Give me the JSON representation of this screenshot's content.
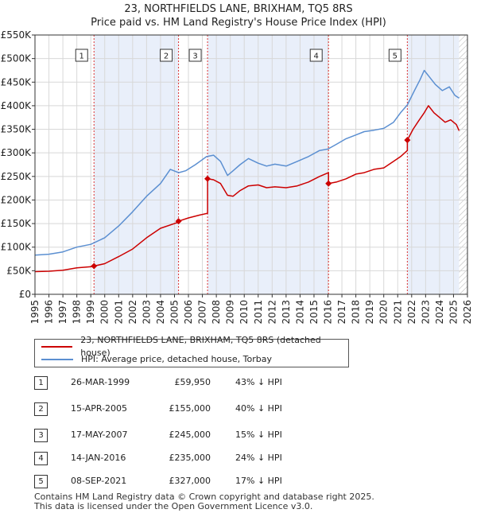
{
  "title": "23, NORTHFIELDS LANE, BRIXHAM, TQ5 8RS",
  "subtitle": "Price paid vs. HM Land Registry's House Price Index (HPI)",
  "colors": {
    "property": "#cc0000",
    "hpi": "#5b8fd1",
    "shade": "#e9effa",
    "vline": "#dd3333"
  },
  "chart_data": {
    "type": "line",
    "title": "23, NORTHFIELDS LANE, BRIXHAM, TQ5 8RS — Price paid vs. HM Land Registry's House Price Index (HPI)",
    "xlim": [
      1995,
      2026
    ],
    "ylim": [
      0,
      550000
    ],
    "y_ticks": [
      0,
      50000,
      100000,
      150000,
      200000,
      250000,
      300000,
      350000,
      400000,
      450000,
      500000,
      550000
    ],
    "y_tick_labels": [
      "£0",
      "£50K",
      "£100K",
      "£150K",
      "£200K",
      "£250K",
      "£300K",
      "£350K",
      "£400K",
      "£450K",
      "£500K",
      "£550K"
    ],
    "x_ticks": [
      1995,
      1996,
      1997,
      1998,
      1999,
      2000,
      2001,
      2002,
      2003,
      2004,
      2005,
      2006,
      2007,
      2008,
      2009,
      2010,
      2011,
      2012,
      2013,
      2014,
      2015,
      2016,
      2017,
      2018,
      2019,
      2020,
      2021,
      2022,
      2023,
      2024,
      2025,
      2026
    ],
    "x_tick_labels": [
      "1995",
      "1996",
      "1997",
      "1998",
      "1999",
      "2000",
      "2001",
      "2002",
      "2003",
      "2004",
      "2005",
      "2006",
      "2007",
      "2008",
      "2009",
      "2010",
      "2011",
      "2012",
      "2013",
      "2014",
      "2015",
      "2016",
      "2017",
      "2018",
      "2019",
      "2020",
      "2021",
      "2022",
      "2023",
      "2024",
      "2025",
      "2026"
    ],
    "grid": true,
    "series": [
      {
        "name": "23, NORTHFIELDS LANE, BRIXHAM, TQ5 8RS (detached house)",
        "color": "#cc0000",
        "x": [
          1995.0,
          1996.0,
          1997.0,
          1998.0,
          1999.23,
          1999.23,
          2000.0,
          2001.0,
          2002.0,
          2003.0,
          2004.0,
          2005.29,
          2005.29,
          2006.0,
          2006.8,
          2007.37,
          2007.37,
          2007.8,
          2008.3,
          2008.8,
          2009.2,
          2009.7,
          2010.3,
          2011.0,
          2011.6,
          2012.2,
          2013.0,
          2013.8,
          2014.6,
          2015.4,
          2016.04,
          2016.04,
          2016.6,
          2017.3,
          2018.0,
          2018.6,
          2019.3,
          2020.0,
          2020.7,
          2021.2,
          2021.69,
          2021.69,
          2022.1,
          2022.5,
          2022.9,
          2023.2,
          2023.6,
          2024.0,
          2024.4,
          2024.8,
          2025.2,
          2025.4
        ],
        "y": [
          48000,
          49000,
          51000,
          56000,
          59000,
          59950,
          65000,
          80000,
          96000,
          120000,
          140000,
          153000,
          155000,
          162000,
          168000,
          172000,
          245000,
          243000,
          235000,
          210000,
          208000,
          220000,
          230000,
          232000,
          226000,
          228000,
          226000,
          230000,
          238000,
          250000,
          258000,
          235000,
          238000,
          245000,
          255000,
          258000,
          265000,
          268000,
          282000,
          292000,
          305000,
          327000,
          350000,
          368000,
          385000,
          400000,
          385000,
          375000,
          365000,
          370000,
          360000,
          347000
        ]
      },
      {
        "name": "HPI: Average price, detached house, Torbay",
        "color": "#5b8fd1",
        "x": [
          1995.0,
          1996.0,
          1997.0,
          1998.0,
          1999.0,
          2000.0,
          2001.0,
          2002.0,
          2003.0,
          2004.0,
          2004.7,
          2005.3,
          2005.8,
          2006.5,
          2007.3,
          2007.8,
          2008.3,
          2008.8,
          2009.2,
          2009.7,
          2010.3,
          2011.0,
          2011.6,
          2012.2,
          2013.0,
          2013.8,
          2014.6,
          2015.4,
          2016.0,
          2016.6,
          2017.3,
          2018.0,
          2018.6,
          2019.3,
          2020.0,
          2020.7,
          2021.2,
          2021.7,
          2022.2,
          2022.6,
          2022.9,
          2023.3,
          2023.7,
          2024.2,
          2024.7,
          2025.1,
          2025.4
        ],
        "y": [
          83000,
          85000,
          90000,
          100000,
          106000,
          120000,
          145000,
          175000,
          208000,
          235000,
          265000,
          258000,
          262000,
          275000,
          292000,
          295000,
          282000,
          252000,
          262000,
          275000,
          288000,
          278000,
          272000,
          276000,
          272000,
          282000,
          292000,
          305000,
          308000,
          318000,
          330000,
          338000,
          345000,
          348000,
          352000,
          365000,
          385000,
          402000,
          432000,
          455000,
          475000,
          460000,
          445000,
          432000,
          440000,
          422000,
          416000
        ]
      }
    ],
    "sales": [
      {
        "label": "1",
        "x": 1999.23,
        "y": 59950
      },
      {
        "label": "2",
        "x": 2005.29,
        "y": 155000
      },
      {
        "label": "3",
        "x": 2007.37,
        "y": 245000
      },
      {
        "label": "4",
        "x": 2016.04,
        "y": 235000
      },
      {
        "label": "5",
        "x": 2021.69,
        "y": 327000
      }
    ],
    "shaded_periods": [
      [
        1999.23,
        2005.29
      ],
      [
        2007.37,
        2016.04
      ],
      [
        2021.69,
        2025.4
      ]
    ],
    "hatched_from": 2025.4
  },
  "legend": {
    "property_label": "23, NORTHFIELDS LANE, BRIXHAM, TQ5 8RS (detached house)",
    "hpi_label": "HPI: Average price, detached house, Torbay"
  },
  "transactions": [
    {
      "num": "1",
      "date": "26-MAR-1999",
      "price": "£59,950",
      "pct": "43% ↓ HPI"
    },
    {
      "num": "2",
      "date": "15-APR-2005",
      "price": "£155,000",
      "pct": "40% ↓ HPI"
    },
    {
      "num": "3",
      "date": "17-MAY-2007",
      "price": "£245,000",
      "pct": "15% ↓ HPI"
    },
    {
      "num": "4",
      "date": "14-JAN-2016",
      "price": "£235,000",
      "pct": "24% ↓ HPI"
    },
    {
      "num": "5",
      "date": "08-SEP-2021",
      "price": "£327,000",
      "pct": "17% ↓ HPI"
    }
  ],
  "footer": {
    "line1": "Contains HM Land Registry data © Crown copyright and database right 2025.",
    "line2": "This data is licensed under the Open Government Licence v3.0."
  }
}
